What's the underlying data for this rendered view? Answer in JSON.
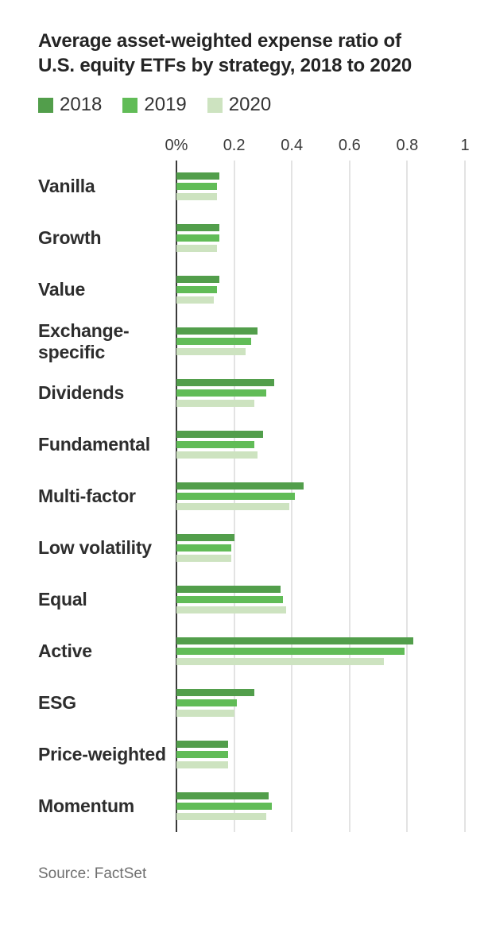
{
  "header": {
    "title_lines": [
      "Average asset-weighted expense ratio of",
      "U.S. equity ETFs by strategy, 2018 to 2020"
    ]
  },
  "legend": {
    "items": [
      {
        "label": "2018",
        "color": "#529e4b"
      },
      {
        "label": "2019",
        "color": "#61bc57"
      },
      {
        "label": "2020",
        "color": "#cde3c0"
      }
    ]
  },
  "chart_data": {
    "type": "bar",
    "orientation": "horizontal",
    "title": "Average asset-weighted expense ratio of U.S. equity ETFs by strategy, 2018 to 2020",
    "categories": [
      "Vanilla",
      "Growth",
      "Value",
      "Exchange-specific",
      "Dividends",
      "Fundamental",
      "Multi-factor",
      "Low volatility",
      "Equal",
      "Active",
      "ESG",
      "Price-weighted",
      "Momentum"
    ],
    "series": [
      {
        "name": "2018",
        "color": "#529e4b",
        "values": [
          0.15,
          0.15,
          0.15,
          0.28,
          0.34,
          0.3,
          0.44,
          0.2,
          0.36,
          0.82,
          0.27,
          0.18,
          0.32
        ]
      },
      {
        "name": "2019",
        "color": "#61bc57",
        "values": [
          0.14,
          0.15,
          0.14,
          0.26,
          0.31,
          0.27,
          0.41,
          0.19,
          0.37,
          0.79,
          0.21,
          0.18,
          0.33
        ]
      },
      {
        "name": "2020",
        "color": "#cde3c0",
        "values": [
          0.14,
          0.14,
          0.13,
          0.24,
          0.27,
          0.28,
          0.39,
          0.19,
          0.38,
          0.72,
          0.2,
          0.18,
          0.31
        ]
      }
    ],
    "x_axis": {
      "tick_labels": [
        "0%",
        "0.2",
        "0.4",
        "0.6",
        "0.8",
        "1"
      ],
      "tick_values": [
        0,
        0.2,
        0.4,
        0.6,
        0.8,
        1
      ],
      "min": 0,
      "max": 1
    },
    "grid": true,
    "legend_position": "top",
    "unit": "percent"
  },
  "footer": {
    "source": "Source: FactSet"
  }
}
